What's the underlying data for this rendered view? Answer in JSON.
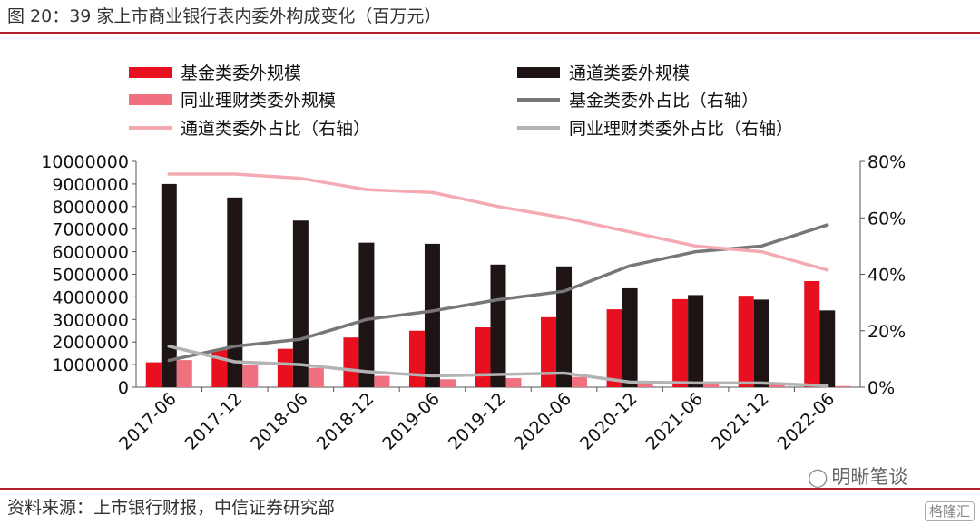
{
  "figure": {
    "title": "图 20：39 家上市商业银行表内委外构成变化（百万元）",
    "source": "资料来源：上市银行财报，中信证券研究部",
    "watermark": "明晰笔谈",
    "corner_logo": "格隆汇",
    "accent_color": "#b01e2a"
  },
  "chart_data": {
    "type": "bar",
    "categories": [
      "2017-06",
      "2017-12",
      "2018-06",
      "2018-12",
      "2019-06",
      "2019-12",
      "2020-06",
      "2020-12",
      "2021-06",
      "2021-12",
      "2022-06"
    ],
    "ylim": [
      0,
      10000000
    ],
    "yticks": [
      "0",
      "1000000",
      "2000000",
      "3000000",
      "4000000",
      "5000000",
      "6000000",
      "7000000",
      "8000000",
      "9000000",
      "10000000"
    ],
    "y2lim": [
      0,
      80
    ],
    "y2ticks": [
      "0%",
      "20%",
      "40%",
      "60%",
      "80%"
    ],
    "series": [
      {
        "name": "基金类委外规模",
        "type": "bar",
        "axis": "left",
        "color": "#e8101f",
        "values": [
          1100000,
          1650000,
          1700000,
          2200000,
          2500000,
          2650000,
          3100000,
          3450000,
          3900000,
          4050000,
          4700000
        ]
      },
      {
        "name": "通道类委外规模",
        "type": "bar",
        "axis": "left",
        "color": "#1e1414",
        "values": [
          9000000,
          8400000,
          7380000,
          6400000,
          6350000,
          5430000,
          5350000,
          4380000,
          4080000,
          3880000,
          3400000
        ]
      },
      {
        "name": "同业理财类委外规模",
        "type": "bar",
        "axis": "left",
        "color": "#f07080",
        "values": [
          1200000,
          1000000,
          850000,
          500000,
          350000,
          400000,
          450000,
          200000,
          180000,
          150000,
          50000
        ]
      },
      {
        "name": "基金类委外占比（右轴）",
        "type": "line",
        "axis": "right",
        "color": "#777777",
        "values": [
          9.5,
          14.5,
          17,
          24,
          27,
          31,
          34,
          43,
          48,
          50,
          57.5
        ]
      },
      {
        "name": "通道类委外占比（右轴）",
        "type": "line",
        "axis": "right",
        "color": "#f4aab2",
        "values": [
          75.5,
          75.5,
          74,
          70,
          69,
          64,
          60,
          55,
          50,
          48,
          41.5
        ]
      },
      {
        "name": "同业理财类委外占比（右轴）",
        "type": "line",
        "axis": "right",
        "color": "#b3b3b3",
        "values": [
          14.5,
          9,
          8,
          5.5,
          4,
          4.5,
          5,
          1.8,
          1.5,
          1.5,
          0.5
        ]
      }
    ],
    "legend_position": "top",
    "grid": false
  }
}
